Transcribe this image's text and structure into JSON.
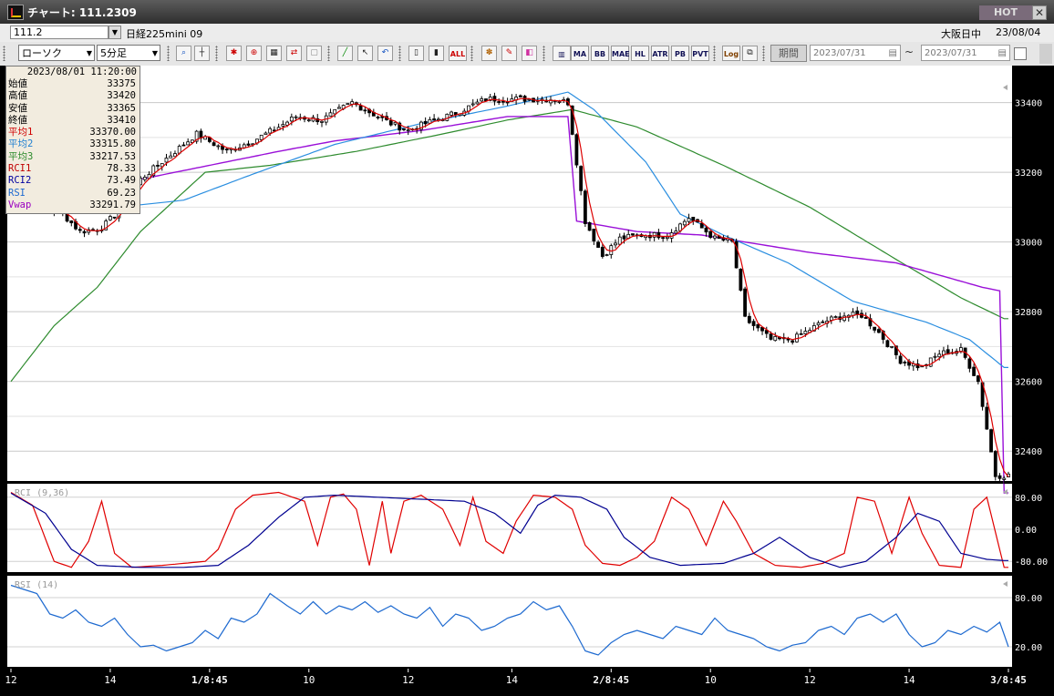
{
  "window": {
    "title": "チャート: 111.2309",
    "hot_label": "HOT",
    "close_glyph": "✕"
  },
  "infobar": {
    "code": "111.2",
    "instrument": "日経225mini 09",
    "session": "大阪日中",
    "date": "23/08/04"
  },
  "toolbar": {
    "chart_type": "ローソク",
    "interval": "5分足",
    "indicator_buttons": [
      "MA",
      "BB",
      "MAE",
      "HL",
      "ATR",
      "PB",
      "PVT",
      "Log"
    ],
    "period_label": "期間",
    "date_from": "2023/07/31",
    "date_to": "2023/07/31",
    "range_separator": "~"
  },
  "info_panel": {
    "timestamp": "2023/08/01  11:20:00",
    "rows": [
      {
        "label": "始値",
        "value": "33375",
        "color": "#000000"
      },
      {
        "label": "高値",
        "value": "33420",
        "color": "#000000"
      },
      {
        "label": "安値",
        "value": "33365",
        "color": "#000000"
      },
      {
        "label": "終値",
        "value": "33410",
        "color": "#000000"
      },
      {
        "label": "平均1",
        "value": "33370.00",
        "color": "#d00000"
      },
      {
        "label": "平均2",
        "value": "33315.80",
        "color": "#1e7fd0"
      },
      {
        "label": "平均3",
        "value": "33217.53",
        "color": "#2a8a2a"
      },
      {
        "label": "RCI1",
        "value": "78.33",
        "color": "#c00000"
      },
      {
        "label": "RCI2",
        "value": "73.49",
        "color": "#0000a0"
      },
      {
        "label": "RSI",
        "value": "69.23",
        "color": "#1e6ad0"
      },
      {
        "label": "Vwap",
        "value": "33291.79",
        "color": "#9a00c0"
      }
    ]
  },
  "chart_data": [
    {
      "type": "candlestick",
      "y_ticks": [
        33400,
        33200,
        33000,
        32800,
        32600,
        32400
      ],
      "ylim": [
        32330,
        33480
      ],
      "x_ticks": [
        "12",
        "14",
        "1/8:45",
        "10",
        "12",
        "14",
        "2/8:45",
        "10",
        "12",
        "14",
        "3/8:45"
      ],
      "colors": {
        "up": "#ffffff",
        "down": "#000000",
        "ma1": "#dd0000",
        "ma2": "#2a8ee0",
        "ma3": "#2e8b2e",
        "vwap": "#9a10d8"
      },
      "close_anchors": [
        [
          0,
          33150
        ],
        [
          12,
          33080
        ],
        [
          16,
          33030
        ],
        [
          21,
          33040
        ],
        [
          25,
          33090
        ],
        [
          30,
          33180
        ],
        [
          36,
          33240
        ],
        [
          43,
          33310
        ],
        [
          50,
          33260
        ],
        [
          56,
          33290
        ],
        [
          62,
          33330
        ],
        [
          66,
          33360
        ],
        [
          72,
          33350
        ],
        [
          79,
          33400
        ],
        [
          82,
          33380
        ],
        [
          88,
          33340
        ],
        [
          92,
          33320
        ],
        [
          96,
          33340
        ],
        [
          103,
          33370
        ],
        [
          110,
          33410
        ],
        [
          119,
          33410
        ],
        [
          126,
          33410
        ],
        [
          129,
          33400
        ],
        [
          133,
          33060
        ],
        [
          137,
          32960
        ],
        [
          141,
          33010
        ],
        [
          146,
          33020
        ],
        [
          152,
          33020
        ],
        [
          157,
          33070
        ],
        [
          163,
          33010
        ],
        [
          167,
          33000
        ],
        [
          170,
          32780
        ],
        [
          176,
          32720
        ],
        [
          181,
          32720
        ],
        [
          188,
          32770
        ],
        [
          193,
          32790
        ],
        [
          197,
          32790
        ],
        [
          201,
          32740
        ],
        [
          206,
          32660
        ],
        [
          211,
          32640
        ],
        [
          215,
          32680
        ],
        [
          220,
          32690
        ],
        [
          224,
          32600
        ],
        [
          228,
          32330
        ]
      ],
      "ma2_anchors": [
        [
          0,
          33270
        ],
        [
          15,
          33180
        ],
        [
          25,
          33100
        ],
        [
          40,
          33120
        ],
        [
          55,
          33190
        ],
        [
          75,
          33280
        ],
        [
          95,
          33340
        ],
        [
          115,
          33390
        ],
        [
          129,
          33430
        ],
        [
          135,
          33380
        ],
        [
          147,
          33230
        ],
        [
          155,
          33080
        ],
        [
          165,
          33020
        ],
        [
          180,
          32940
        ],
        [
          195,
          32830
        ],
        [
          212,
          32770
        ],
        [
          222,
          32720
        ],
        [
          230,
          32640
        ]
      ],
      "ma3_anchors": [
        [
          0,
          32600
        ],
        [
          10,
          32760
        ],
        [
          20,
          32870
        ],
        [
          30,
          33030
        ],
        [
          45,
          33200
        ],
        [
          60,
          33220
        ],
        [
          80,
          33260
        ],
        [
          100,
          33310
        ],
        [
          115,
          33350
        ],
        [
          130,
          33380
        ],
        [
          145,
          33330
        ],
        [
          165,
          33220
        ],
        [
          185,
          33100
        ],
        [
          205,
          32950
        ],
        [
          220,
          32840
        ],
        [
          230,
          32780
        ]
      ],
      "vwap_anchors": [
        [
          0,
          33210
        ],
        [
          30,
          33180
        ],
        [
          50,
          33230
        ],
        [
          62,
          33260
        ],
        [
          75,
          33290
        ],
        [
          95,
          33320
        ],
        [
          115,
          33360
        ],
        [
          129,
          33360
        ],
        [
          131,
          33060
        ],
        [
          145,
          33030
        ],
        [
          160,
          33020
        ],
        [
          185,
          32970
        ],
        [
          205,
          32940
        ],
        [
          225,
          32870
        ],
        [
          229,
          32860
        ],
        [
          230,
          32280
        ]
      ]
    },
    {
      "type": "line",
      "title": "RCI (9,36)",
      "y_ticks": [
        80,
        0,
        -80
      ],
      "y_tick_labels": [
        "80.00",
        "0.00",
        "-80.00"
      ],
      "ylim": [
        -100,
        100
      ],
      "series": [
        {
          "color": "#e00000",
          "anchors": [
            [
              0,
              92
            ],
            [
              5,
              60
            ],
            [
              10,
              -80
            ],
            [
              14,
              -95
            ],
            [
              18,
              -30
            ],
            [
              21,
              70
            ],
            [
              24,
              -60
            ],
            [
              28,
              -95
            ],
            [
              35,
              -90
            ],
            [
              40,
              -85
            ],
            [
              45,
              -80
            ],
            [
              48,
              -50
            ],
            [
              52,
              50
            ],
            [
              56,
              85
            ],
            [
              62,
              92
            ],
            [
              68,
              70
            ],
            [
              71,
              -40
            ],
            [
              74,
              80
            ],
            [
              77,
              88
            ],
            [
              80,
              50
            ],
            [
              83,
              -90
            ],
            [
              86,
              70
            ],
            [
              88,
              -60
            ],
            [
              91,
              70
            ],
            [
              95,
              85
            ],
            [
              100,
              50
            ],
            [
              104,
              -40
            ],
            [
              107,
              80
            ],
            [
              110,
              -30
            ],
            [
              114,
              -60
            ],
            [
              117,
              20
            ],
            [
              121,
              85
            ],
            [
              126,
              80
            ],
            [
              130,
              50
            ],
            [
              133,
              -40
            ],
            [
              137,
              -85
            ],
            [
              141,
              -90
            ],
            [
              145,
              -70
            ],
            [
              149,
              -30
            ],
            [
              153,
              80
            ],
            [
              157,
              50
            ],
            [
              161,
              -40
            ],
            [
              165,
              70
            ],
            [
              168,
              20
            ],
            [
              172,
              -60
            ],
            [
              177,
              -90
            ],
            [
              183,
              -95
            ],
            [
              188,
              -85
            ],
            [
              193,
              -60
            ],
            [
              196,
              80
            ],
            [
              200,
              70
            ],
            [
              204,
              -60
            ],
            [
              208,
              80
            ],
            [
              211,
              -10
            ],
            [
              215,
              -90
            ],
            [
              220,
              -95
            ],
            [
              223,
              50
            ],
            [
              226,
              80
            ],
            [
              230,
              -95
            ]
          ]
        },
        {
          "color": "#000090",
          "anchors": [
            [
              0,
              90
            ],
            [
              8,
              40
            ],
            [
              14,
              -50
            ],
            [
              20,
              -90
            ],
            [
              30,
              -95
            ],
            [
              40,
              -95
            ],
            [
              48,
              -90
            ],
            [
              55,
              -40
            ],
            [
              62,
              30
            ],
            [
              68,
              80
            ],
            [
              75,
              85
            ],
            [
              85,
              80
            ],
            [
              95,
              75
            ],
            [
              105,
              70
            ],
            [
              112,
              40
            ],
            [
              118,
              -10
            ],
            [
              122,
              60
            ],
            [
              126,
              85
            ],
            [
              132,
              80
            ],
            [
              138,
              50
            ],
            [
              142,
              -20
            ],
            [
              148,
              -70
            ],
            [
              155,
              -90
            ],
            [
              165,
              -85
            ],
            [
              172,
              -60
            ],
            [
              178,
              -20
            ],
            [
              185,
              -70
            ],
            [
              192,
              -95
            ],
            [
              198,
              -80
            ],
            [
              205,
              -20
            ],
            [
              210,
              40
            ],
            [
              215,
              20
            ],
            [
              220,
              -60
            ],
            [
              226,
              -75
            ],
            [
              230,
              -78
            ]
          ]
        }
      ]
    },
    {
      "type": "line",
      "title": "RSI (14)",
      "y_ticks": [
        80,
        20
      ],
      "y_tick_labels": [
        "80.00",
        "20.00"
      ],
      "ylim": [
        0,
        100
      ],
      "series": [
        {
          "color": "#1e6ad0",
          "anchors": [
            [
              0,
              95
            ],
            [
              3,
              90
            ],
            [
              6,
              85
            ],
            [
              9,
              60
            ],
            [
              12,
              55
            ],
            [
              15,
              65
            ],
            [
              18,
              50
            ],
            [
              21,
              45
            ],
            [
              24,
              55
            ],
            [
              27,
              35
            ],
            [
              30,
              20
            ],
            [
              33,
              22
            ],
            [
              36,
              15
            ],
            [
              39,
              20
            ],
            [
              42,
              25
            ],
            [
              45,
              40
            ],
            [
              48,
              30
            ],
            [
              51,
              55
            ],
            [
              54,
              50
            ],
            [
              57,
              60
            ],
            [
              60,
              85
            ],
            [
              64,
              70
            ],
            [
              67,
              60
            ],
            [
              70,
              75
            ],
            [
              73,
              60
            ],
            [
              76,
              70
            ],
            [
              79,
              65
            ],
            [
              82,
              75
            ],
            [
              85,
              62
            ],
            [
              88,
              70
            ],
            [
              91,
              60
            ],
            [
              94,
              55
            ],
            [
              97,
              68
            ],
            [
              100,
              45
            ],
            [
              103,
              60
            ],
            [
              106,
              55
            ],
            [
              109,
              40
            ],
            [
              112,
              45
            ],
            [
              115,
              55
            ],
            [
              118,
              60
            ],
            [
              121,
              75
            ],
            [
              124,
              65
            ],
            [
              127,
              70
            ],
            [
              130,
              45
            ],
            [
              133,
              15
            ],
            [
              136,
              10
            ],
            [
              139,
              25
            ],
            [
              142,
              35
            ],
            [
              145,
              40
            ],
            [
              148,
              35
            ],
            [
              151,
              30
            ],
            [
              154,
              45
            ],
            [
              157,
              40
            ],
            [
              160,
              35
            ],
            [
              163,
              55
            ],
            [
              166,
              40
            ],
            [
              169,
              35
            ],
            [
              172,
              30
            ],
            [
              175,
              20
            ],
            [
              178,
              15
            ],
            [
              181,
              22
            ],
            [
              184,
              25
            ],
            [
              187,
              40
            ],
            [
              190,
              45
            ],
            [
              193,
              35
            ],
            [
              196,
              55
            ],
            [
              199,
              60
            ],
            [
              202,
              50
            ],
            [
              205,
              60
            ],
            [
              208,
              35
            ],
            [
              211,
              20
            ],
            [
              214,
              25
            ],
            [
              217,
              40
            ],
            [
              220,
              35
            ],
            [
              223,
              45
            ],
            [
              226,
              38
            ],
            [
              229,
              50
            ],
            [
              231,
              20
            ]
          ]
        }
      ]
    }
  ]
}
